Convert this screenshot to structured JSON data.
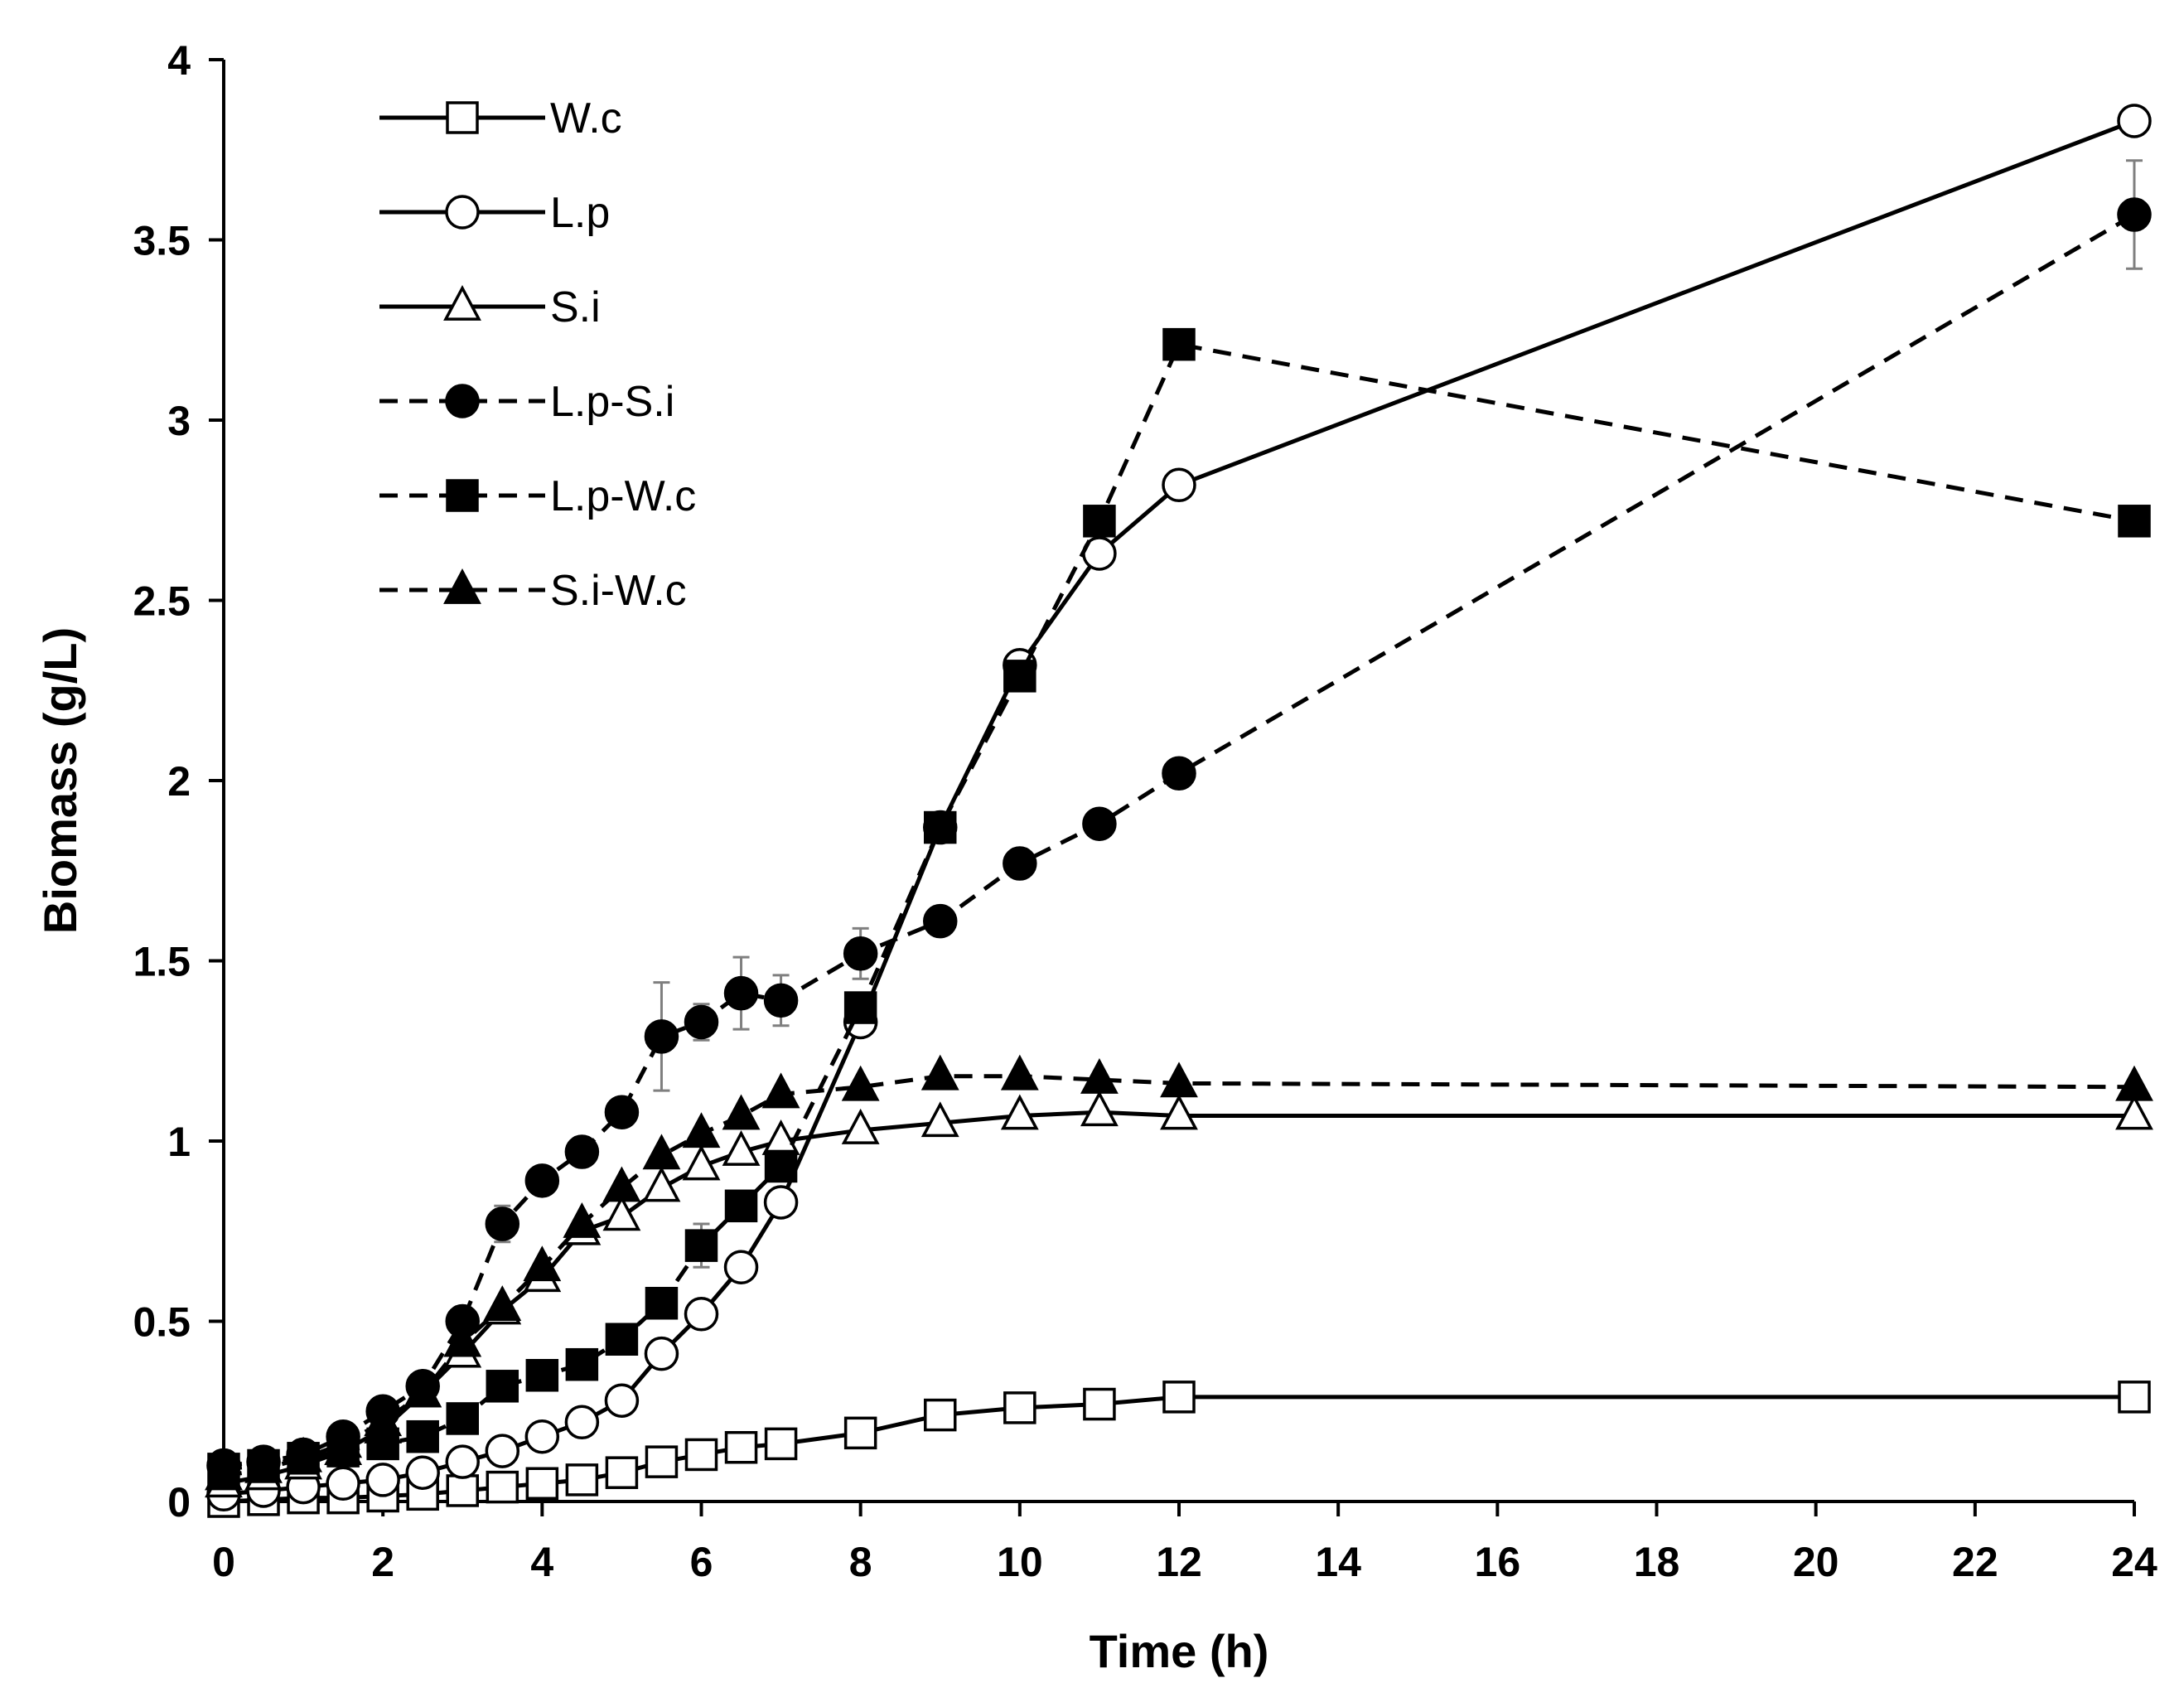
{
  "chart_data": {
    "type": "line",
    "title": "",
    "xlabel": "Time (h)",
    "ylabel": "Biomass (g/L)",
    "xlim": [
      0,
      24
    ],
    "ylim": [
      0,
      4
    ],
    "xticks": [
      0,
      2,
      4,
      6,
      8,
      10,
      12,
      14,
      16,
      18,
      20,
      22,
      24
    ],
    "yticks": [
      0,
      0.5,
      1,
      1.5,
      2,
      2.5,
      3,
      3.5,
      4
    ],
    "grid": false,
    "legend_position": "top-left",
    "colors": {
      "line": "#000000",
      "errorbar": "#7f7f7f",
      "open_fill": "#ffffff",
      "solid_fill": "#000000"
    },
    "series": [
      {
        "name": "W.c",
        "marker": "square",
        "filled": false,
        "dashed": false,
        "x": [
          0,
          0.5,
          1,
          1.5,
          2,
          2.5,
          3,
          3.5,
          4,
          4.5,
          5,
          5.5,
          6,
          6.5,
          7,
          8,
          9,
          10,
          11,
          12,
          24
        ],
        "y": [
          0.0,
          0.005,
          0.01,
          0.01,
          0.015,
          0.02,
          0.03,
          0.04,
          0.05,
          0.06,
          0.08,
          0.11,
          0.13,
          0.15,
          0.16,
          0.19,
          0.24,
          0.26,
          0.27,
          0.29,
          0.29
        ]
      },
      {
        "name": "L.p",
        "marker": "circle",
        "filled": false,
        "dashed": false,
        "x": [
          0,
          0.5,
          1,
          1.5,
          2,
          2.5,
          3,
          3.5,
          4,
          4.5,
          5,
          5.5,
          6,
          6.5,
          7,
          8,
          9,
          10,
          11,
          12,
          24
        ],
        "y": [
          0.02,
          0.03,
          0.04,
          0.05,
          0.06,
          0.08,
          0.11,
          0.14,
          0.18,
          0.22,
          0.28,
          0.41,
          0.52,
          0.65,
          0.83,
          1.33,
          1.87,
          2.32,
          2.63,
          2.82,
          3.83
        ]
      },
      {
        "name": "S.i",
        "marker": "triangle",
        "filled": false,
        "dashed": false,
        "x": [
          0,
          0.5,
          1,
          1.5,
          2,
          2.5,
          3,
          3.5,
          4,
          4.5,
          5,
          5.5,
          6,
          6.5,
          7,
          8,
          9,
          10,
          11,
          12,
          24
        ],
        "y": [
          0.05,
          0.07,
          0.1,
          0.14,
          0.2,
          0.3,
          0.41,
          0.53,
          0.62,
          0.75,
          0.79,
          0.87,
          0.93,
          0.97,
          1.0,
          1.03,
          1.05,
          1.07,
          1.08,
          1.07,
          1.07
        ]
      },
      {
        "name": "L.p-S.i",
        "marker": "circle",
        "filled": true,
        "dashed": true,
        "x": [
          0,
          0.5,
          1,
          1.5,
          2,
          2.5,
          3,
          3.5,
          4,
          4.5,
          5,
          5.5,
          6,
          6.5,
          7,
          8,
          9,
          10,
          11,
          12,
          24
        ],
        "y": [
          0.1,
          0.11,
          0.13,
          0.18,
          0.25,
          0.32,
          0.5,
          0.77,
          0.89,
          0.97,
          1.08,
          1.29,
          1.33,
          1.41,
          1.39,
          1.52,
          1.61,
          1.77,
          1.88,
          2.02,
          3.57
        ],
        "error": [
          0,
          0,
          0,
          0,
          0,
          0,
          0,
          0.05,
          0,
          0,
          0,
          0.15,
          0.05,
          0.1,
          0.07,
          0.07,
          0,
          0,
          0,
          0,
          0.15
        ]
      },
      {
        "name": "L.p-W.c",
        "marker": "square",
        "filled": true,
        "dashed": true,
        "x": [
          0,
          0.5,
          1,
          1.5,
          2,
          2.5,
          3,
          3.5,
          4,
          4.5,
          5,
          5.5,
          6,
          6.5,
          7,
          8,
          9,
          10,
          11,
          12,
          24
        ],
        "y": [
          0.09,
          0.1,
          0.12,
          0.14,
          0.16,
          0.18,
          0.23,
          0.32,
          0.35,
          0.38,
          0.45,
          0.55,
          0.71,
          0.82,
          0.93,
          1.37,
          1.87,
          2.29,
          2.72,
          3.21,
          2.72
        ],
        "error": [
          0,
          0,
          0,
          0,
          0,
          0,
          0,
          0,
          0,
          0,
          0,
          0,
          0.06,
          0,
          0,
          0,
          0,
          0,
          0,
          0,
          0
        ]
      },
      {
        "name": "S.i-W.c",
        "marker": "triangle",
        "filled": true,
        "dashed": true,
        "x": [
          0,
          0.5,
          1,
          1.5,
          2,
          2.5,
          3,
          3.5,
          4,
          4.5,
          5,
          5.5,
          6,
          6.5,
          7,
          8,
          9,
          10,
          11,
          12,
          24
        ],
        "y": [
          0.07,
          0.09,
          0.12,
          0.16,
          0.22,
          0.3,
          0.44,
          0.54,
          0.65,
          0.77,
          0.87,
          0.96,
          1.02,
          1.07,
          1.13,
          1.15,
          1.18,
          1.18,
          1.17,
          1.16,
          1.15
        ]
      }
    ]
  }
}
